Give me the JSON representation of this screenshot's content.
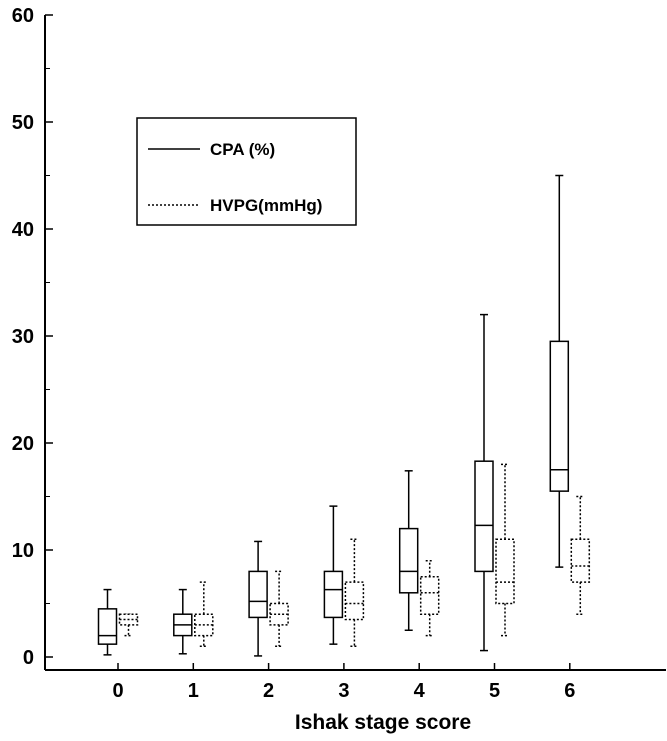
{
  "chart_data": {
    "type": "box",
    "title": "",
    "xlabel": "Ishak stage score",
    "ylabel": "",
    "ylim": [
      0,
      60
    ],
    "yticks": [
      "0",
      "10",
      "20",
      "30",
      "40",
      "50",
      "60"
    ],
    "categories": [
      "0",
      "1",
      "2",
      "3",
      "4",
      "5",
      "6"
    ],
    "grid": false,
    "legend_position": "top-left",
    "series": [
      {
        "name": "CPA (%)",
        "line_style": "solid",
        "boxes": [
          {
            "min": 0.2,
            "q1": 1.2,
            "median": 2.0,
            "q3": 4.5,
            "max": 6.3
          },
          {
            "min": 0.3,
            "q1": 2.0,
            "median": 3.0,
            "q3": 4.0,
            "max": 6.3
          },
          {
            "min": 0.1,
            "q1": 3.7,
            "median": 5.2,
            "q3": 8.0,
            "max": 10.8
          },
          {
            "min": 1.2,
            "q1": 3.7,
            "median": 6.3,
            "q3": 8.0,
            "max": 14.1
          },
          {
            "min": 2.5,
            "q1": 6.0,
            "median": 8.0,
            "q3": 12.0,
            "max": 17.4
          },
          {
            "min": 0.6,
            "q1": 8.0,
            "median": 12.3,
            "q3": 18.3,
            "max": 32.0
          },
          {
            "min": 8.4,
            "q1": 15.5,
            "median": 17.5,
            "q3": 29.5,
            "max": 45.0
          }
        ]
      },
      {
        "name": "HVPG(mmHg)",
        "line_style": "dashed",
        "boxes": [
          {
            "min": 2.0,
            "q1": 3.0,
            "median": 3.5,
            "q3": 4.0,
            "max": 4.0
          },
          {
            "min": 1.0,
            "q1": 2.0,
            "median": 3.0,
            "q3": 4.0,
            "max": 7.0
          },
          {
            "min": 1.0,
            "q1": 3.0,
            "median": 4.0,
            "q3": 5.0,
            "max": 8.0
          },
          {
            "min": 1.0,
            "q1": 3.5,
            "median": 5.0,
            "q3": 7.0,
            "max": 11.0
          },
          {
            "min": 2.0,
            "q1": 4.0,
            "median": 6.0,
            "q3": 7.5,
            "max": 9.0
          },
          {
            "min": 2.0,
            "q1": 5.0,
            "median": 7.0,
            "q3": 11.0,
            "max": 18.0
          },
          {
            "min": 4.0,
            "q1": 7.0,
            "median": 8.5,
            "q3": 11.0,
            "max": 15.0
          }
        ]
      }
    ]
  }
}
